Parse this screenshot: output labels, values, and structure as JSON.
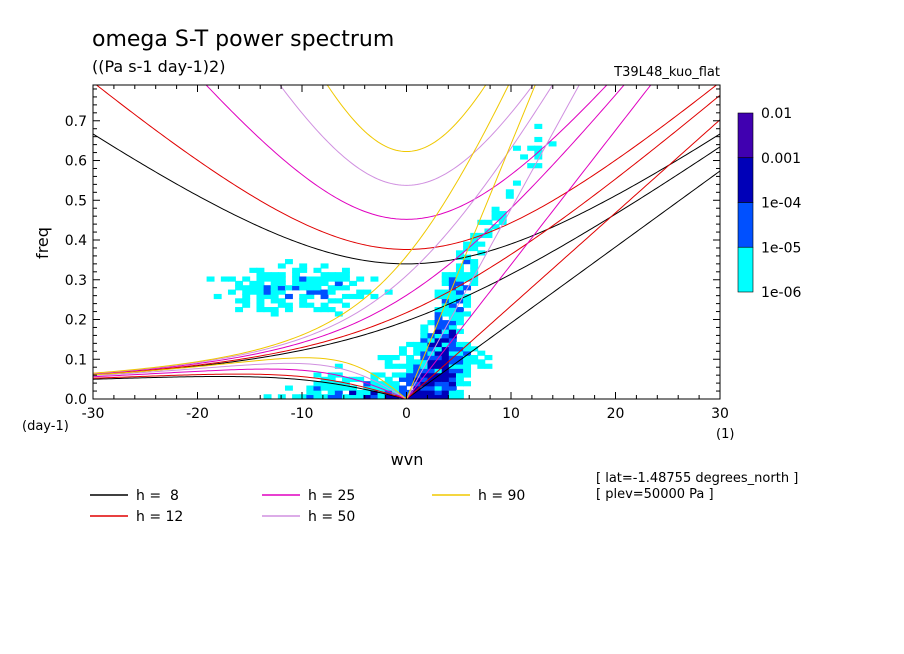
{
  "chart_data": {
    "type": "heatmap",
    "title": "omega S-T power spectrum",
    "subtitle": "((Pa s-1 day-1)2)",
    "run_label": "T39L48_kuo_flat",
    "xlabel": "wvn",
    "ylabel": "freq",
    "x_unit": "(1)",
    "y_unit": "(day-1)",
    "xlim": [
      -30,
      30
    ],
    "ylim": [
      0,
      0.79
    ],
    "x_ticks": [
      "-30",
      "-20",
      "-10",
      "0",
      "10",
      "20",
      "30"
    ],
    "y_ticks": [
      "0.0",
      "0.1",
      "0.2",
      "0.3",
      "0.4",
      "0.5",
      "0.6",
      "0.7"
    ],
    "colorbar": {
      "labels": [
        "0.01",
        "0.001",
        "1e-04",
        "1e-05",
        "1e-06"
      ],
      "colors": [
        "#4000b0",
        "#0000b8",
        "#0050ff",
        "#00ffff"
      ]
    },
    "dispersion_curves": [
      {
        "label": "h =  8",
        "h": 8,
        "color": "#000000"
      },
      {
        "label": "h = 12",
        "h": 12,
        "color": "#e00000"
      },
      {
        "label": "h = 25",
        "h": 25,
        "color": "#e000c0"
      },
      {
        "label": "h = 50",
        "h": 50,
        "color": "#d090e0"
      },
      {
        "label": "h = 90",
        "h": 90,
        "color": "#f0c800"
      }
    ],
    "info_lines": [
      "[ lat=-1.48755 degrees_north ]",
      "[ plev=50000 Pa ]"
    ]
  }
}
